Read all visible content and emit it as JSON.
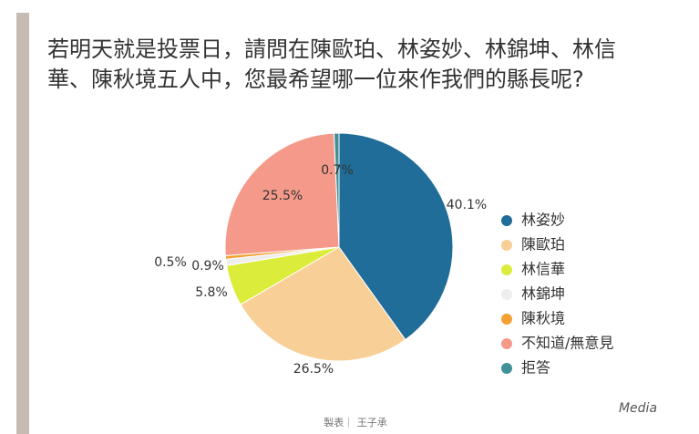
{
  "chart_data": {
    "type": "pie",
    "title": "若明天就是投票日，請問在陳歐珀、林姿妙、林錦坤、林信華、陳秋境五人中，您最希望哪一位來作我們的縣長呢?",
    "categories": [
      "林姿妙",
      "陳歐珀",
      "林信華",
      "林錦坤",
      "陳秋境",
      "不知道/無意見",
      "拒答"
    ],
    "values": [
      40.1,
      26.5,
      5.8,
      0.9,
      0.5,
      25.5,
      0.7
    ],
    "value_labels": [
      "40.1%",
      "26.5%",
      "5.8%",
      "0.9%",
      "0.5%",
      "25.5%",
      "0.7%"
    ],
    "colors": [
      "#1f6d98",
      "#f8cf97",
      "#dcec3b",
      "#eeeeee",
      "#f4a032",
      "#f59a8b",
      "#3f9097"
    ],
    "legend": "right",
    "footer": "製表｜ 王子承",
    "logo": "Media"
  }
}
